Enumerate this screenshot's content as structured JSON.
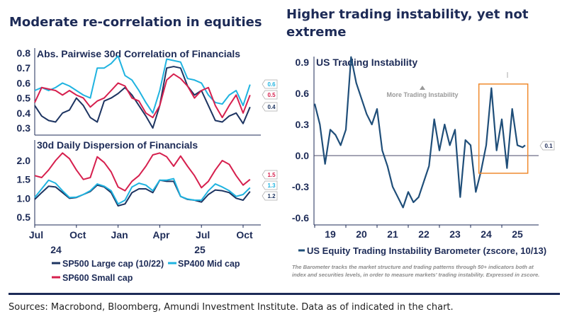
{
  "left_title": "Moderate re-correlation in equities",
  "right_title": "Higher trading instability, yet not extreme",
  "sources": "Sources: Macrobond, Bloomberg, Amundi Investment Institute. Data as of indicated in the chart.",
  "colors": {
    "navy": "#1d3461",
    "cyan": "#1fb3e0",
    "red": "#d6204e",
    "barometer": "#1f4e79",
    "box": "#ef8a2e"
  },
  "chart_data": [
    {
      "type": "line",
      "title": "Abs. Pairwise 30d Correlation of Financials",
      "ylim": [
        0.27,
        0.82
      ],
      "yticks": [
        "0.3",
        "0.4",
        "0.5",
        "0.6",
        "0.7",
        "0.8"
      ],
      "x": [
        "2024-07-01",
        "2024-07-16",
        "2024-08-01",
        "2024-08-16",
        "2024-09-01",
        "2024-09-16",
        "2024-10-01",
        "2024-10-16",
        "2024-11-01",
        "2024-11-16",
        "2024-12-01",
        "2024-12-16",
        "2025-01-01",
        "2025-01-16",
        "2025-02-01",
        "2025-02-16",
        "2025-03-01",
        "2025-03-16",
        "2025-04-01",
        "2025-04-16",
        "2025-05-01",
        "2025-05-16",
        "2025-06-01",
        "2025-06-16",
        "2025-07-01",
        "2025-07-16",
        "2025-08-01",
        "2025-08-16",
        "2025-09-01",
        "2025-09-16",
        "2025-10-01",
        "2025-10-16"
      ],
      "series": [
        {
          "name": "SP500 Large cap (10/22)",
          "color": "#1d3461",
          "end_label": "0.4",
          "values": [
            0.45,
            0.38,
            0.35,
            0.34,
            0.4,
            0.42,
            0.5,
            0.45,
            0.37,
            0.34,
            0.48,
            0.5,
            0.53,
            0.57,
            0.52,
            0.45,
            0.38,
            0.3,
            0.45,
            0.7,
            0.71,
            0.7,
            0.58,
            0.52,
            0.55,
            0.45,
            0.35,
            0.34,
            0.38,
            0.4,
            0.33,
            0.44
          ]
        },
        {
          "name": "SP400 Mid cap",
          "color": "#1fb3e0",
          "end_label": "0.6",
          "values": [
            0.55,
            0.57,
            0.55,
            0.57,
            0.6,
            0.58,
            0.55,
            0.52,
            0.5,
            0.7,
            0.7,
            0.73,
            0.78,
            0.65,
            0.62,
            0.55,
            0.47,
            0.4,
            0.55,
            0.76,
            0.75,
            0.74,
            0.63,
            0.62,
            0.6,
            0.52,
            0.47,
            0.46,
            0.52,
            0.55,
            0.45,
            0.59
          ]
        },
        {
          "name": "SP600 Small cap",
          "color": "#d6204e",
          "end_label": "0.5",
          "values": [
            0.47,
            0.57,
            0.56,
            0.55,
            0.52,
            0.55,
            0.52,
            0.5,
            0.44,
            0.48,
            0.5,
            0.55,
            0.6,
            0.58,
            0.5,
            0.48,
            0.4,
            0.37,
            0.45,
            0.62,
            0.66,
            0.63,
            0.58,
            0.5,
            0.55,
            0.57,
            0.45,
            0.37,
            0.45,
            0.52,
            0.4,
            0.52
          ]
        }
      ]
    },
    {
      "type": "line",
      "title": "30d Daily Dispersion of Financials",
      "ylim": [
        0.4,
        2.35
      ],
      "yticks": [
        "0.5",
        "1.0",
        "1.5",
        "2.0"
      ],
      "xticks": [
        "Jul",
        "Oct",
        "Jan",
        "Apr",
        "Jul",
        "Oct"
      ],
      "year_labels": [
        "24",
        "25"
      ],
      "x": [
        "2024-07-01",
        "2024-07-16",
        "2024-08-01",
        "2024-08-16",
        "2024-09-01",
        "2024-09-16",
        "2024-10-01",
        "2024-10-16",
        "2024-11-01",
        "2024-11-16",
        "2024-12-01",
        "2024-12-16",
        "2025-01-01",
        "2025-01-16",
        "2025-02-01",
        "2025-02-16",
        "2025-03-01",
        "2025-03-16",
        "2025-04-01",
        "2025-04-16",
        "2025-05-01",
        "2025-05-16",
        "2025-06-01",
        "2025-06-16",
        "2025-07-01",
        "2025-07-16",
        "2025-08-01",
        "2025-08-16",
        "2025-09-01",
        "2025-09-16",
        "2025-10-01",
        "2025-10-16"
      ],
      "series": [
        {
          "name": "SP500 Large cap (10/22)",
          "color": "#1d3461",
          "end_label": "1.2",
          "values": [
            0.97,
            1.15,
            1.32,
            1.3,
            1.15,
            1.0,
            1.02,
            1.1,
            1.18,
            1.35,
            1.3,
            1.15,
            0.8,
            0.85,
            1.15,
            1.25,
            1.25,
            1.15,
            1.48,
            1.45,
            1.45,
            1.05,
            0.97,
            0.95,
            0.9,
            1.1,
            1.22,
            1.2,
            1.15,
            1.0,
            0.95,
            1.18
          ]
        },
        {
          "name": "SP400 Mid cap",
          "color": "#1fb3e0",
          "end_label": "1.3",
          "values": [
            1.02,
            1.25,
            1.48,
            1.4,
            1.2,
            1.02,
            1.03,
            1.1,
            1.2,
            1.38,
            1.32,
            1.2,
            0.85,
            0.95,
            1.3,
            1.4,
            1.35,
            1.2,
            1.48,
            1.48,
            1.52,
            1.05,
            0.98,
            0.95,
            0.95,
            1.2,
            1.38,
            1.3,
            1.2,
            1.05,
            1.1,
            1.28
          ]
        },
        {
          "name": "SP600 Small cap",
          "color": "#d6204e",
          "end_label": "1.5",
          "values": [
            1.6,
            1.55,
            1.75,
            2.0,
            2.2,
            2.05,
            1.75,
            1.5,
            1.55,
            2.1,
            1.95,
            1.7,
            1.3,
            1.2,
            1.45,
            1.6,
            1.85,
            2.15,
            2.2,
            2.1,
            1.85,
            2.12,
            1.85,
            1.6,
            1.28,
            1.45,
            1.75,
            2.0,
            1.9,
            1.6,
            1.35,
            1.5
          ]
        }
      ]
    },
    {
      "type": "line",
      "title": "US Trading Instability",
      "ylim": [
        -0.7,
        0.95
      ],
      "yticks": [
        "-0.6",
        "-0.3",
        "0.0",
        "0.3",
        "0.6",
        "0.9"
      ],
      "xticks": [
        "19",
        "20",
        "21",
        "22",
        "23",
        "24",
        "25"
      ],
      "annotation": "More Trading Instability",
      "highlight_box": {
        "x": [
          "2024-05",
          "2025-11"
        ],
        "y": [
          -0.17,
          0.69
        ]
      },
      "note": "The Barometer tracks the market structure and trading patterns through 50+ indicators both at index and securities levels, in order to measure markets' trading instability. Expressed in zscore.",
      "x": [
        "2019-01",
        "2019-03",
        "2019-05",
        "2019-07",
        "2019-09",
        "2019-11",
        "2020-01",
        "2020-03",
        "2020-05",
        "2020-07",
        "2020-09",
        "2020-11",
        "2021-01",
        "2021-03",
        "2021-05",
        "2021-07",
        "2021-09",
        "2021-11",
        "2022-01",
        "2022-03",
        "2022-05",
        "2022-07",
        "2022-09",
        "2022-11",
        "2023-01",
        "2023-03",
        "2023-05",
        "2023-07",
        "2023-09",
        "2023-11",
        "2024-01",
        "2024-03",
        "2024-05",
        "2024-07",
        "2024-09",
        "2024-11",
        "2025-01",
        "2025-03",
        "2025-05",
        "2025-07",
        "2025-09",
        "2025-10"
      ],
      "series": [
        {
          "name": "US Equity Trading Instability Barometer (zscore, 10/13)",
          "color": "#1f4e79",
          "end_label": "0.1",
          "values": [
            0.5,
            0.3,
            -0.08,
            0.25,
            0.2,
            0.1,
            0.25,
            0.95,
            0.7,
            0.55,
            0.4,
            0.3,
            0.45,
            0.05,
            -0.1,
            -0.3,
            -0.4,
            -0.5,
            -0.35,
            -0.45,
            -0.4,
            -0.25,
            -0.1,
            0.35,
            0.05,
            0.3,
            0.1,
            0.25,
            -0.4,
            0.15,
            0.1,
            -0.35,
            -0.15,
            0.1,
            0.65,
            0.05,
            0.35,
            -0.12,
            0.45,
            0.1,
            0.08,
            0.1
          ]
        }
      ]
    }
  ]
}
